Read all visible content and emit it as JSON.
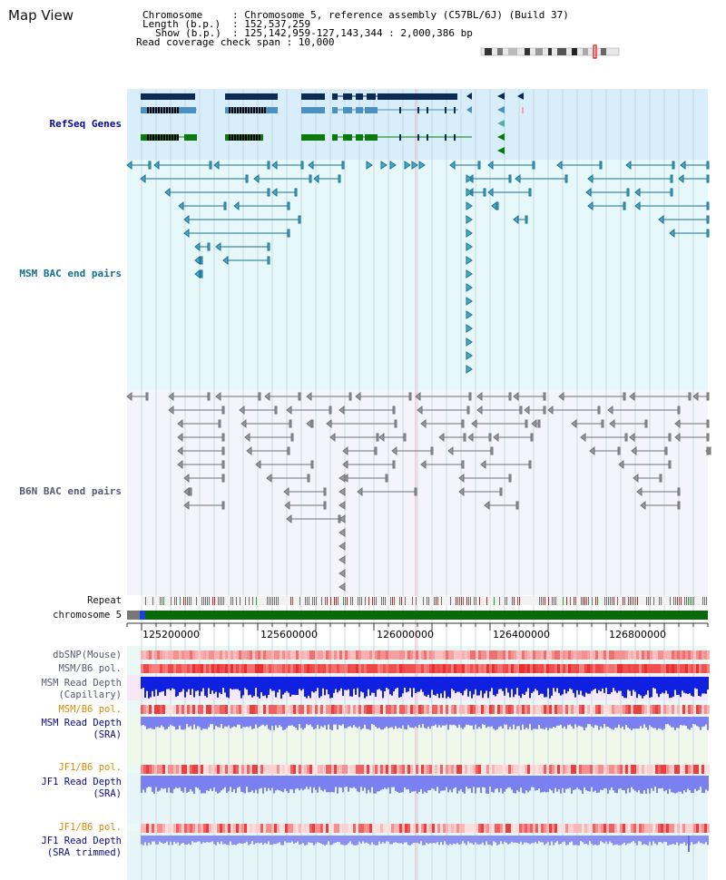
{
  "page": {
    "title": "Map View"
  },
  "info": {
    "chromosome_key": "Chromosome",
    "chromosome_value": ": Chromosome 5, reference assembly (C57BL/6J) (Build 37)",
    "length_key": "Length (b.p.)",
    "length_value": ": 152,537,259",
    "show_key": "Show (b.p.)",
    "show_value": ": 125,142,959-127,143,344 : 2,000,386 bp",
    "coverage_line": "Read coverage check span : 10,000"
  },
  "tracks": {
    "refseq": "RefSeq Genes",
    "msm_bac": "MSM BAC end pairs",
    "b6n_bac": "B6N BAC end pairs",
    "repeat": "Repeat",
    "chromosome": "chromosome 5"
  },
  "axis": {
    "ticks": [
      "125200000",
      "125600000",
      "126000000",
      "126400000",
      "126800000"
    ]
  },
  "snp_tracks": {
    "dbsnp": "dbSNP(Mouse)",
    "msm_b6_pol_1": "MSM/B6 pol.",
    "msm_read_depth_cap_1": "MSM Read Depth",
    "msm_read_depth_cap_2": "(Capillary)",
    "msm_b6_pol_2": "MSM/B6 pol.",
    "msm_read_depth_sra_1": "MSM Read Depth",
    "msm_read_depth_sra_2": "(SRA)",
    "jf1_b6_pol_1": "JF1/B6 pol.",
    "jf1_read_depth_sra_1": "JF1 Read Depth",
    "jf1_read_depth_sra_2": "(SRA)",
    "jf1_b6_pol_2": "JF1/B6 pol.",
    "jf1_read_depth_trim_1": "JF1 Read Depth",
    "jf1_read_depth_trim_2": "(SRA trimmed)"
  },
  "colors": {
    "refseq_bg": "#d8eefa",
    "msm_bg": "#e6f8fa",
    "b6n_bg": "#f4f4fa",
    "gene_dark": "#0b2a55",
    "gene_mid": "#4a90c0",
    "gene_green": "#0a7a0a",
    "msm_feature": "#1a7090",
    "b6n_feature": "#707078",
    "chromosome_bar": "#0a6a0a",
    "depth_capillary": "#1020e0",
    "depth_sra": "#7a80f0",
    "pol_red": "#f05050"
  }
}
